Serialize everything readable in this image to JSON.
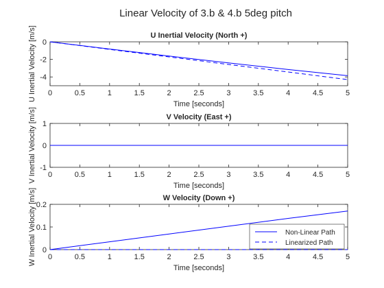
{
  "figure_title": "Linear Velocity of 3.b & 4.b 5deg pitch",
  "colors": {
    "series": "#0000ff",
    "axis": "#262626",
    "background": "#ffffff"
  },
  "chart_data": [
    {
      "type": "line",
      "title": "U Inertial Velocity (North +)",
      "xlabel": "Time [seconds]",
      "ylabel": "U Inertial Velocity [m/s]",
      "xlim": [
        0,
        5
      ],
      "ylim": [
        -5,
        0
      ],
      "xticks": [
        0,
        0.5,
        1,
        1.5,
        2,
        2.5,
        3,
        3.5,
        4,
        4.5,
        5
      ],
      "yticks": [
        -4,
        -2,
        0
      ],
      "grid": false,
      "series": [
        {
          "style": "solid",
          "x": [
            0,
            1,
            2,
            3,
            4,
            5
          ],
          "values": [
            0,
            -0.82,
            -1.62,
            -2.4,
            -3.15,
            -3.86
          ]
        },
        {
          "style": "dashed",
          "x": [
            0,
            1,
            2,
            3,
            4,
            5
          ],
          "values": [
            0,
            -0.86,
            -1.72,
            -2.58,
            -3.44,
            -4.3
          ]
        }
      ]
    },
    {
      "type": "line",
      "title": "V Velocity (East +)",
      "xlabel": "Time [seconds]",
      "ylabel": "V Inertial Velocity [m/s]",
      "xlim": [
        0,
        5
      ],
      "ylim": [
        -1,
        1
      ],
      "xticks": [
        0,
        0.5,
        1,
        1.5,
        2,
        2.5,
        3,
        3.5,
        4,
        4.5,
        5
      ],
      "yticks": [
        -1,
        0,
        1
      ],
      "grid": false,
      "series": [
        {
          "style": "solid",
          "x": [
            0,
            5
          ],
          "values": [
            0,
            0
          ]
        },
        {
          "style": "dashed",
          "x": [
            0,
            5
          ],
          "values": [
            0,
            0
          ]
        }
      ]
    },
    {
      "type": "line",
      "title": "W Velocity (Down +)",
      "xlabel": "Time [seconds]",
      "ylabel": "W Inertial Velocity [m/s]",
      "xlim": [
        0,
        5
      ],
      "ylim": [
        0,
        0.2
      ],
      "xticks": [
        0,
        0.5,
        1,
        1.5,
        2,
        2.5,
        3,
        3.5,
        4,
        4.5,
        5
      ],
      "yticks": [
        0,
        0.1,
        0.2
      ],
      "grid": false,
      "legend_position": "bottom-right",
      "series": [
        {
          "name": "Non-Linear Path",
          "style": "solid",
          "x": [
            0,
            1,
            2,
            3,
            4,
            5
          ],
          "values": [
            0,
            0.0345,
            0.069,
            0.1035,
            0.138,
            0.1705
          ]
        },
        {
          "name": "Linearized Path",
          "style": "dashed",
          "x": [
            0,
            5
          ],
          "values": [
            0,
            0
          ]
        }
      ]
    }
  ]
}
